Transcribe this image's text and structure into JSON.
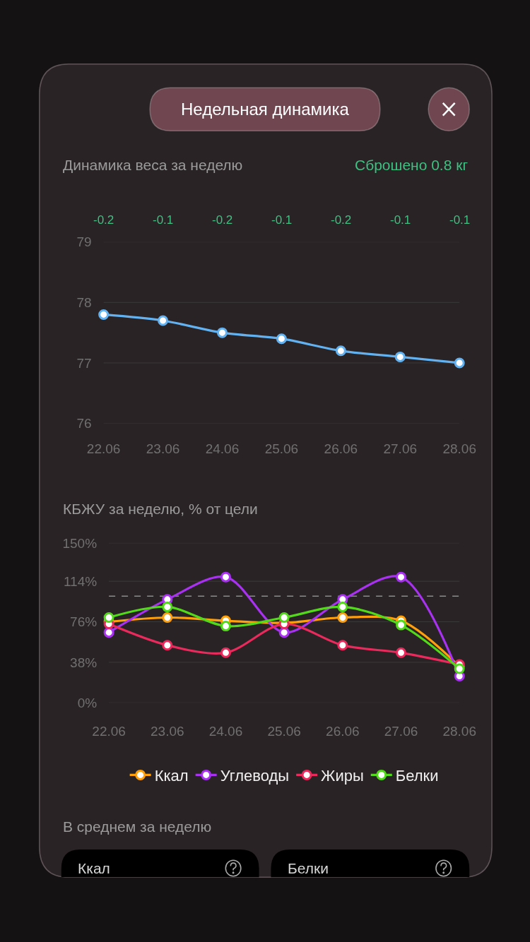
{
  "chart_data": [
    {
      "type": "other",
      "title": "Недельная динамика"
    },
    {
      "type": "line",
      "title": "Динамика веса за неделю",
      "subtitle": "Сброшено 0.8 кг",
      "annotations": [
        "-0.2",
        "-0.1",
        "-0.2",
        "-0.1",
        "-0.2",
        "-0.1",
        "-0.1"
      ],
      "categories": [
        "22.06",
        "23.06",
        "24.06",
        "25.06",
        "26.06",
        "27.06",
        "28.06"
      ],
      "series": [
        {
          "color": "#62b2f2",
          "values": [
            77.8,
            77.7,
            77.5,
            77.4,
            77.2,
            77.1,
            77.0
          ]
        }
      ],
      "ylim": [
        76,
        79
      ],
      "yticks": [
        76,
        77,
        78,
        79
      ],
      "grid": "y",
      "marker": "circle"
    },
    {
      "type": "line",
      "title": "КБЖУ за неделю, % от цели",
      "categories": [
        "22.06",
        "23.06",
        "24.06",
        "25.06",
        "26.06",
        "27.06",
        "28.06"
      ],
      "series": [
        {
          "name": "Ккал",
          "color": "#ff9f0a",
          "values": [
            76,
            80,
            77,
            75,
            80,
            77,
            34
          ]
        },
        {
          "name": "Углеводы",
          "color": "#a831f2",
          "values": [
            66,
            97,
            118,
            66,
            97,
            118,
            25
          ]
        },
        {
          "name": "Жиры",
          "color": "#ea2a5c",
          "values": [
            74,
            54,
            47,
            74,
            54,
            47,
            36
          ]
        },
        {
          "name": "Белки",
          "color": "#52d91a",
          "values": [
            80,
            90,
            72,
            80,
            90,
            73,
            32
          ]
        }
      ],
      "ylim": [
        0,
        150
      ],
      "yticks": [
        {
          "value": 0,
          "label": "0%"
        },
        {
          "value": 38,
          "label": "38%"
        },
        {
          "value": 76,
          "label": "76%"
        },
        {
          "value": 114,
          "label": "114%"
        },
        {
          "value": 150,
          "label": "150%"
        }
      ],
      "ref_lines": [
        {
          "axis": "y",
          "value": 100,
          "color": "#8c8c8c",
          "line_style": "dashed"
        }
      ],
      "grid": "y",
      "marker": "circle",
      "legend": "bottom"
    },
    {
      "type": "other",
      "title": "В среднем за неделю",
      "annotations": [
        "Ккал",
        "Белки"
      ]
    }
  ]
}
